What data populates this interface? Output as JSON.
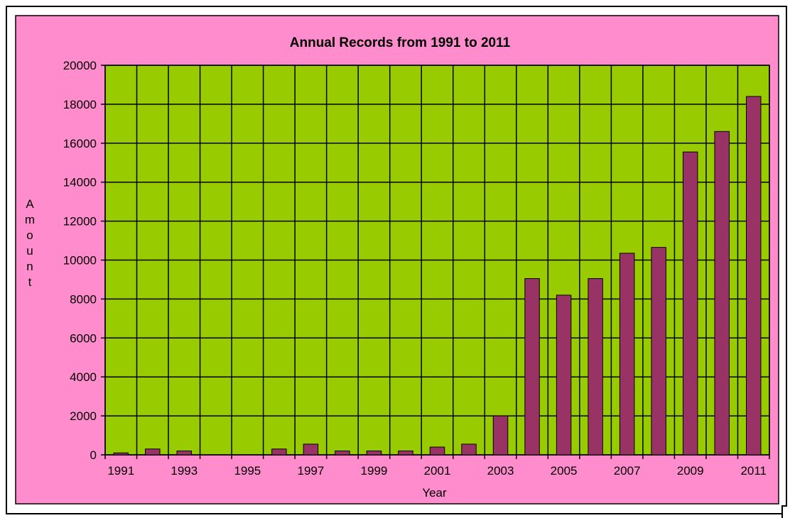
{
  "colors": {
    "chart_area": "#ff8ccd",
    "plot_area": "#99cc00",
    "bar_fill": "#993366",
    "grid": "#000000"
  },
  "chart_data": {
    "type": "bar",
    "title": "Annual Records from 1991 to 2011",
    "xlabel": "Year",
    "ylabel": "Amount",
    "categories": [
      "1991",
      "1992",
      "1993",
      "1994",
      "1995",
      "1996",
      "1997",
      "1998",
      "1999",
      "2000",
      "2001",
      "2002",
      "2003",
      "2004",
      "2005",
      "2006",
      "2007",
      "2008",
      "2009",
      "2010",
      "2011"
    ],
    "x_tick_labels": [
      "1991",
      "1993",
      "1995",
      "1997",
      "1999",
      "2001",
      "2003",
      "2005",
      "2007",
      "2009",
      "2011"
    ],
    "values": [
      100,
      300,
      200,
      0,
      0,
      300,
      550,
      200,
      200,
      200,
      400,
      550,
      2000,
      9050,
      8200,
      9050,
      10350,
      10650,
      15550,
      16600,
      18400
    ],
    "ylim": [
      0,
      20000
    ],
    "y_ticks": [
      0,
      2000,
      4000,
      6000,
      8000,
      10000,
      12000,
      14000,
      16000,
      18000,
      20000
    ],
    "grid": "both",
    "legend": "none"
  }
}
